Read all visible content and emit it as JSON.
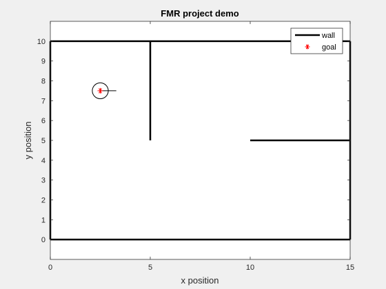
{
  "chart_data": {
    "type": "line",
    "title": "FMR project demo",
    "xlabel": "x position",
    "ylabel": "y position",
    "xlim": [
      0,
      15
    ],
    "ylim": [
      -1,
      11
    ],
    "x_ticks": [
      0,
      5,
      10,
      15
    ],
    "y_ticks": [
      0,
      1,
      2,
      3,
      4,
      5,
      6,
      7,
      8,
      9,
      10
    ],
    "grid": false,
    "box": true,
    "legend_position": "top-right",
    "legend": [
      {
        "label": "wall",
        "marker": "line",
        "color": "#000000"
      },
      {
        "label": "goal",
        "marker": "asterisk",
        "color": "#ff0000"
      }
    ],
    "series": [
      {
        "name": "wall",
        "color": "#000000",
        "segments": [
          {
            "x": [
              0,
              15
            ],
            "y": [
              0,
              0
            ]
          },
          {
            "x": [
              15,
              15
            ],
            "y": [
              0,
              10
            ]
          },
          {
            "x": [
              15,
              0
            ],
            "y": [
              10,
              10
            ]
          },
          {
            "x": [
              0,
              0
            ],
            "y": [
              10,
              0
            ]
          },
          {
            "x": [
              5,
              5
            ],
            "y": [
              10,
              5
            ]
          },
          {
            "x": [
              10,
              15
            ],
            "y": [
              5,
              5
            ]
          }
        ]
      },
      {
        "name": "goal",
        "color": "#ff0000",
        "points": [
          {
            "x": 2.5,
            "y": 7.5
          }
        ]
      }
    ],
    "robot": {
      "center": {
        "x": 2.5,
        "y": 7.5
      },
      "radius": 0.4,
      "heading_deg": 0,
      "color": "#000000"
    }
  }
}
